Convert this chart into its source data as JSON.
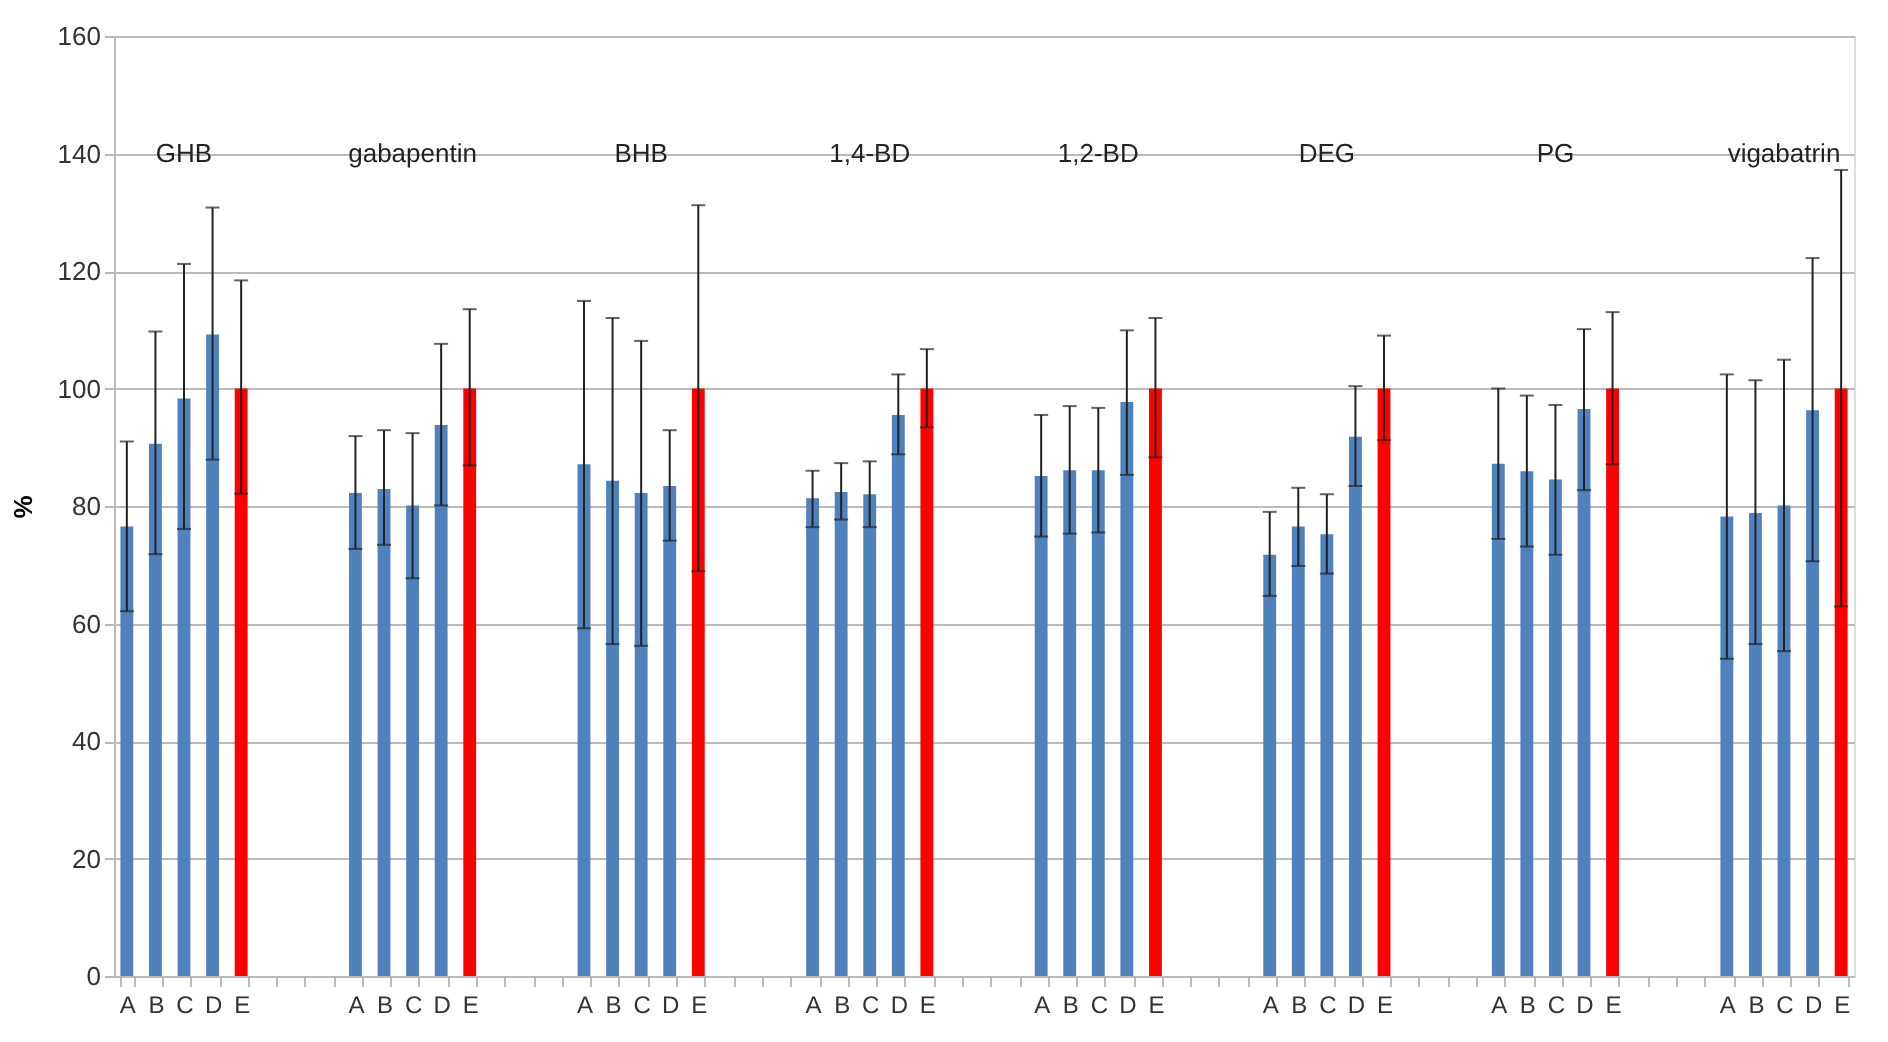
{
  "chart_data": {
    "type": "bar",
    "ylabel": "%",
    "ylim": [
      0,
      160
    ],
    "yticks": [
      0,
      20,
      40,
      60,
      80,
      100,
      120,
      140,
      160
    ],
    "grid": "y",
    "categories": [
      "A",
      "B",
      "C",
      "D",
      "E",
      null,
      null,
      null,
      "A",
      "B",
      "C",
      "D",
      "E",
      null,
      null,
      null,
      "A",
      "B",
      "C",
      "D",
      "E",
      null,
      null,
      null,
      "A",
      "B",
      "C",
      "D",
      "E",
      null,
      null,
      null,
      "A",
      "B",
      "C",
      "D",
      "E",
      null,
      null,
      null,
      "A",
      "B",
      "C",
      "D",
      "E",
      null,
      null,
      null,
      "A",
      "B",
      "C",
      "D",
      "E",
      null,
      null,
      null,
      "A",
      "B",
      "C",
      "D",
      "E"
    ],
    "values": [
      76.5,
      90.6,
      98.3,
      109.2,
      100,
      null,
      null,
      null,
      82.2,
      82.9,
      80.1,
      93.8,
      100,
      null,
      null,
      null,
      87.1,
      84.3,
      82.2,
      83.4,
      100,
      null,
      null,
      null,
      81.3,
      82.4,
      82.0,
      95.5,
      100,
      null,
      null,
      null,
      85.1,
      86.1,
      86.1,
      97.7,
      100,
      null,
      null,
      null,
      71.7,
      76.5,
      75.2,
      91.8,
      100,
      null,
      null,
      null,
      87.2,
      85.9,
      84.5,
      96.5,
      100,
      null,
      null,
      null,
      78.2,
      78.8,
      80.1,
      96.3,
      100
    ],
    "errors": [
      [
        62.1,
        91.0
      ],
      [
        71.8,
        109.7
      ],
      [
        76.1,
        121.2
      ],
      [
        87.9,
        130.8
      ],
      [
        82.1,
        118.4
      ],
      null,
      null,
      null,
      [
        72.7,
        91.9
      ],
      [
        73.4,
        92.9
      ],
      [
        67.7,
        92.4
      ],
      [
        80.1,
        107.6
      ],
      [
        86.9,
        113.5
      ],
      null,
      null,
      null,
      [
        59.2,
        114.9
      ],
      [
        56.5,
        112.0
      ],
      [
        56.2,
        108.1
      ],
      [
        74.1,
        92.9
      ],
      [
        68.9,
        131.2
      ],
      null,
      null,
      null,
      [
        76.4,
        86.0
      ],
      [
        77.7,
        87.3
      ],
      [
        76.4,
        87.6
      ],
      [
        88.8,
        102.4
      ],
      [
        93.4,
        106.7
      ],
      null,
      null,
      null,
      [
        74.8,
        95.5
      ],
      [
        75.3,
        97.0
      ],
      [
        75.5,
        96.7
      ],
      [
        85.3,
        109.9
      ],
      [
        88.3,
        112.0
      ],
      null,
      null,
      null,
      [
        64.7,
        79.0
      ],
      [
        69.8,
        83.1
      ],
      [
        68.5,
        82.0
      ],
      [
        83.4,
        100.4
      ],
      [
        91.2,
        109.0
      ],
      null,
      null,
      null,
      [
        74.4,
        100.0
      ],
      [
        73.1,
        98.8
      ],
      [
        71.7,
        97.2
      ],
      [
        82.7,
        110.1
      ],
      [
        87.1,
        113.0
      ],
      null,
      null,
      null,
      [
        54.0,
        102.4
      ],
      [
        56.5,
        101.4
      ],
      [
        55.3,
        104.9
      ],
      [
        70.6,
        122.2
      ],
      [
        62.9,
        137.2
      ]
    ],
    "colors": [
      "#4f81bd",
      "#4f81bd",
      "#4f81bd",
      "#4f81bd",
      "#ff0000",
      null,
      null,
      null,
      "#4f81bd",
      "#4f81bd",
      "#4f81bd",
      "#4f81bd",
      "#ff0000",
      null,
      null,
      null,
      "#4f81bd",
      "#4f81bd",
      "#4f81bd",
      "#4f81bd",
      "#ff0000",
      null,
      null,
      null,
      "#4f81bd",
      "#4f81bd",
      "#4f81bd",
      "#4f81bd",
      "#ff0000",
      null,
      null,
      null,
      "#4f81bd",
      "#4f81bd",
      "#4f81bd",
      "#4f81bd",
      "#ff0000",
      null,
      null,
      null,
      "#4f81bd",
      "#4f81bd",
      "#4f81bd",
      "#4f81bd",
      "#ff0000",
      null,
      null,
      null,
      "#4f81bd",
      "#4f81bd",
      "#4f81bd",
      "#4f81bd",
      "#ff0000",
      null,
      null,
      null,
      "#4f81bd",
      "#4f81bd",
      "#4f81bd",
      "#4f81bd",
      "#ff0000"
    ],
    "annotations": [
      "GHB",
      "gabapentin",
      "BHB",
      "1,4-BD",
      "1,2-BD",
      "DEG",
      "PG",
      "vigabatrin"
    ]
  }
}
